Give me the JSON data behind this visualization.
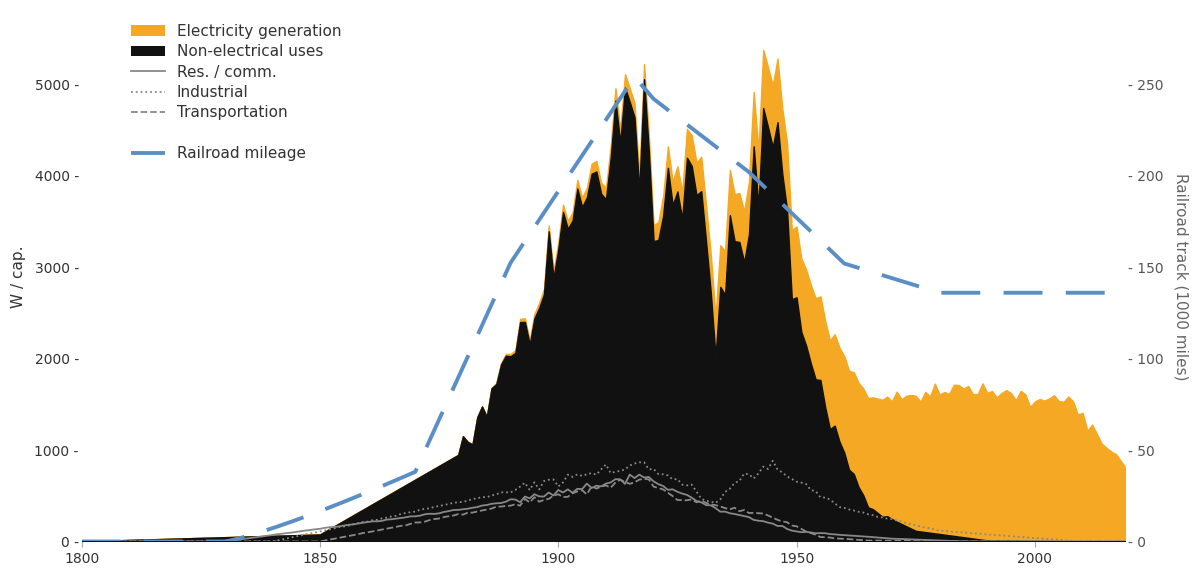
{
  "ylabel_left": "W / cap.",
  "ylabel_right": "Railroad track (1000 miles)",
  "xlim": [
    1800,
    2019
  ],
  "ylim_left": [
    0,
    5800
  ],
  "ylim_right": [
    0,
    290
  ],
  "yticks_left": [
    0,
    1000,
    2000,
    3000,
    4000,
    5000
  ],
  "yticks_right": [
    0,
    50,
    100,
    150,
    200,
    250
  ],
  "xticks": [
    1800,
    1850,
    1900,
    1950,
    2000
  ],
  "color_electricity": "#f5a823",
  "color_nonelec": "#111111",
  "color_lines": "#888888",
  "color_railroad": "#5b8ec4",
  "background_color": "#ffffff",
  "legend_fontsize": 11,
  "axis_fontsize": 11,
  "tick_fontsize": 10
}
